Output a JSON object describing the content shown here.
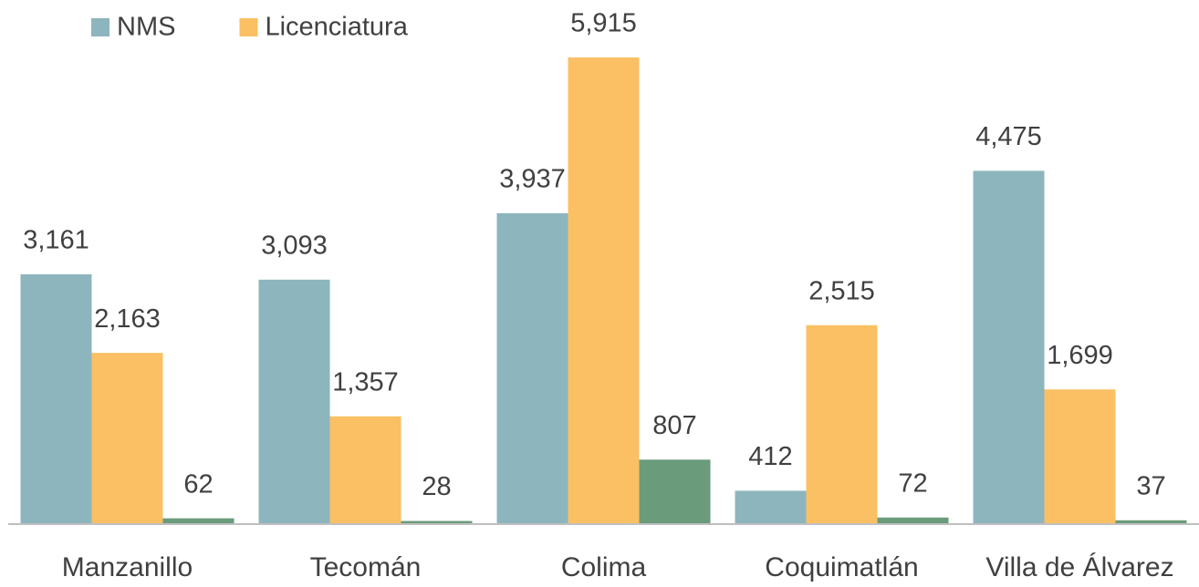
{
  "chart_data": {
    "type": "bar",
    "categories": [
      "Manzanillo",
      "Tecomán",
      "Colima",
      "Coquimatlán",
      "Villa de Álvarez"
    ],
    "series": [
      {
        "name": "NMS",
        "color": "#8db5be",
        "values": [
          3161,
          3093,
          3937,
          412,
          4475
        ],
        "value_labels": [
          "3,161",
          "3,093",
          "3,937",
          "412",
          "4,475"
        ]
      },
      {
        "name": "Licenciatura",
        "color": "#fbc063",
        "values": [
          2163,
          1357,
          5915,
          2515,
          1699
        ],
        "value_labels": [
          "2,163",
          "1,357",
          "5,915",
          "2,515",
          "1,699"
        ]
      },
      {
        "color": "#6a9b7b",
        "values": [
          62,
          28,
          807,
          72,
          37
        ]
      }
    ],
    "ylim": [
      0,
      6000
    ]
  }
}
